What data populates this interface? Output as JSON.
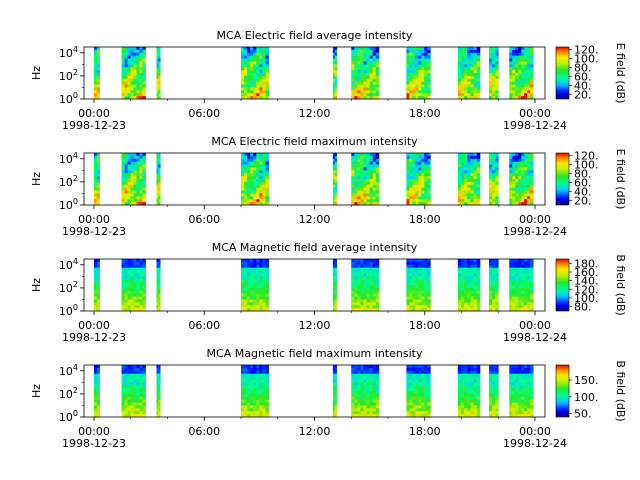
{
  "figure": {
    "time_tick_labels": [
      "00:00",
      "06:00",
      "12:00",
      "18:00",
      "00:00"
    ],
    "date_labels": [
      "1998-12-23",
      "1998-12-24"
    ]
  },
  "chart_data": [
    {
      "type": "heatmap",
      "title": "MCA  Electric field average intensity",
      "ylabel": "Hz",
      "yscale": "log",
      "ylim_exponent": [
        0,
        4.5
      ],
      "ytick_labels": [
        {
          "base": "10",
          "exp": "0"
        },
        {
          "base": "10",
          "exp": "2"
        },
        {
          "base": "10",
          "exp": "4"
        }
      ],
      "colorbar_label": "E field (dB)",
      "colorbar_ticks": [
        "20.",
        "40.",
        "60.",
        "80.",
        "100.",
        "120."
      ],
      "colorbar_range": [
        10,
        125
      ],
      "palette": "rainbow",
      "kind": "electric",
      "data_intervals_hours": [
        [
          0,
          0.3
        ],
        [
          1.5,
          2.8
        ],
        [
          3.4,
          3.6
        ],
        [
          8.0,
          9.5
        ],
        [
          13.0,
          13.2
        ],
        [
          14.0,
          15.5
        ],
        [
          17.0,
          18.3
        ],
        [
          19.8,
          21.0
        ],
        [
          21.5,
          22.0
        ],
        [
          22.6,
          23.9
        ]
      ]
    },
    {
      "type": "heatmap",
      "title": "MCA  Electric field maximum intensity",
      "ylabel": "Hz",
      "yscale": "log",
      "ylim_exponent": [
        0,
        4.5
      ],
      "ytick_labels": [
        {
          "base": "10",
          "exp": "0"
        },
        {
          "base": "10",
          "exp": "2"
        },
        {
          "base": "10",
          "exp": "4"
        }
      ],
      "colorbar_label": "E field (dB)",
      "colorbar_ticks": [
        "20.",
        "40.",
        "60.",
        "80.",
        "100.",
        "120."
      ],
      "colorbar_range": [
        10,
        125
      ],
      "palette": "rainbow",
      "kind": "electric",
      "data_intervals_hours": [
        [
          0,
          0.3
        ],
        [
          1.5,
          2.8
        ],
        [
          3.4,
          3.6
        ],
        [
          8.0,
          9.5
        ],
        [
          13.0,
          13.2
        ],
        [
          14.0,
          15.5
        ],
        [
          17.0,
          18.3
        ],
        [
          19.8,
          21.0
        ],
        [
          21.5,
          22.0
        ],
        [
          22.6,
          23.9
        ]
      ]
    },
    {
      "type": "heatmap",
      "title": "MCA  Magnetic field average intensity",
      "ylabel": "Hz",
      "yscale": "log",
      "ylim_exponent": [
        0,
        4.5
      ],
      "ytick_labels": [
        {
          "base": "10",
          "exp": "0"
        },
        {
          "base": "10",
          "exp": "2"
        },
        {
          "base": "10",
          "exp": "4"
        }
      ],
      "colorbar_label": "B field (dB)",
      "colorbar_ticks": [
        "80.",
        "100.",
        "120.",
        "140.",
        "160.",
        "180."
      ],
      "colorbar_range": [
        70,
        190
      ],
      "palette": "rainbow",
      "kind": "magnetic",
      "data_intervals_hours": [
        [
          0,
          0.3
        ],
        [
          1.5,
          2.8
        ],
        [
          3.4,
          3.6
        ],
        [
          8.0,
          9.5
        ],
        [
          13.0,
          13.2
        ],
        [
          14.0,
          15.5
        ],
        [
          17.0,
          18.3
        ],
        [
          19.8,
          21.0
        ],
        [
          21.5,
          22.0
        ],
        [
          22.6,
          23.9
        ]
      ]
    },
    {
      "type": "heatmap",
      "title": "MCA  Magnetic field maximum intensity",
      "ylabel": "Hz",
      "yscale": "log",
      "ylim_exponent": [
        0,
        4.5
      ],
      "ytick_labels": [
        {
          "base": "10",
          "exp": "0"
        },
        {
          "base": "10",
          "exp": "2"
        },
        {
          "base": "10",
          "exp": "4"
        }
      ],
      "colorbar_label": "B field (dB)",
      "colorbar_ticks": [
        "50.",
        "100.",
        "150."
      ],
      "colorbar_range": [
        40,
        195
      ],
      "palette": "rainbow",
      "kind": "magnetic",
      "data_intervals_hours": [
        [
          0,
          0.3
        ],
        [
          1.5,
          2.8
        ],
        [
          3.4,
          3.6
        ],
        [
          8.0,
          9.5
        ],
        [
          13.0,
          13.2
        ],
        [
          14.0,
          15.5
        ],
        [
          17.0,
          18.3
        ],
        [
          19.8,
          21.0
        ],
        [
          21.5,
          22.0
        ],
        [
          22.6,
          23.9
        ]
      ]
    }
  ]
}
